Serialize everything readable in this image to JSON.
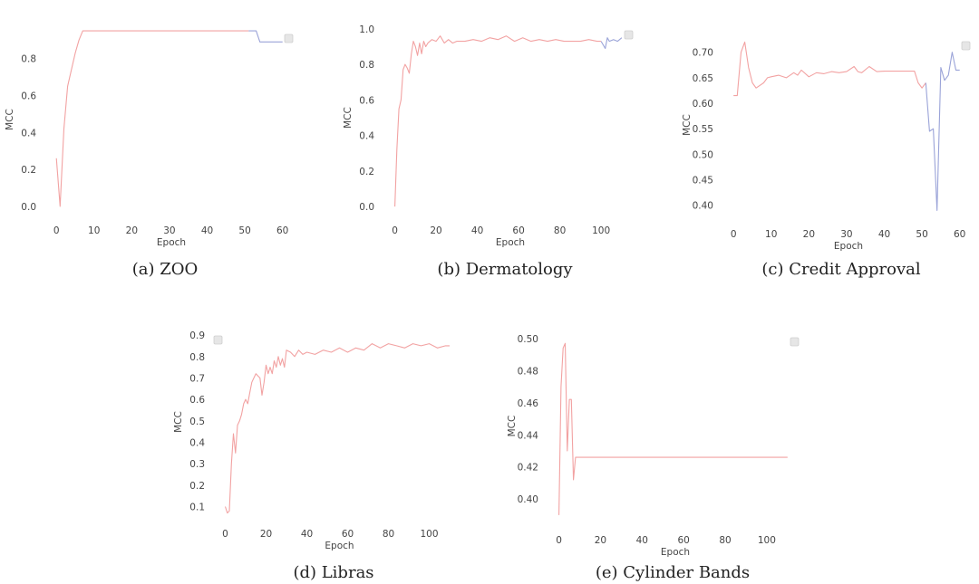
{
  "chart_data": [
    {
      "id": "zoo",
      "type": "line",
      "caption": "(a) ZOO",
      "xlabel": "Epoch",
      "ylabel": "MCC",
      "xlim": [
        -1,
        62
      ],
      "ylim": [
        -0.03,
        0.97
      ],
      "xticks": [
        0,
        10,
        20,
        30,
        40,
        50,
        60
      ],
      "yticks": [
        0.0,
        0.2,
        0.4,
        0.6,
        0.8
      ],
      "ytick_format": 1,
      "legend": "top-right",
      "series": [
        {
          "color": "#f2a2a2",
          "x": [
            0,
            1,
            2,
            3,
            4,
            5,
            6,
            7,
            10,
            20,
            30,
            40,
            50,
            51
          ],
          "y": [
            0.26,
            0.0,
            0.42,
            0.65,
            0.74,
            0.83,
            0.9,
            0.95,
            0.95,
            0.95,
            0.95,
            0.95,
            0.95,
            0.95
          ]
        },
        {
          "color": "#9aa3d8",
          "x": [
            51,
            53,
            54,
            55,
            58,
            60
          ],
          "y": [
            0.95,
            0.95,
            0.89,
            0.89,
            0.89,
            0.89
          ]
        }
      ]
    },
    {
      "id": "dermatology",
      "type": "line",
      "caption": "(b) Dermatology",
      "xlabel": "Epoch",
      "ylabel": "MCC",
      "xlim": [
        -2,
        114
      ],
      "ylim": [
        -0.03,
        1.03
      ],
      "xticks": [
        0,
        20,
        40,
        60,
        80,
        100
      ],
      "yticks": [
        0.0,
        0.2,
        0.4,
        0.6,
        0.8,
        1.0
      ],
      "ytick_format": 1,
      "legend": "top-right",
      "series": [
        {
          "color": "#f2a2a2",
          "x": [
            0,
            1,
            2,
            3,
            4,
            5,
            6,
            7,
            8,
            9,
            10,
            11,
            12,
            13,
            14,
            15,
            16,
            18,
            20,
            22,
            24,
            26,
            28,
            30,
            34,
            38,
            42,
            46,
            50,
            54,
            58,
            62,
            66,
            70,
            74,
            78,
            82,
            86,
            90,
            94,
            98,
            100
          ],
          "y": [
            0.0,
            0.32,
            0.55,
            0.6,
            0.77,
            0.8,
            0.78,
            0.75,
            0.86,
            0.93,
            0.9,
            0.85,
            0.92,
            0.86,
            0.93,
            0.9,
            0.92,
            0.94,
            0.93,
            0.96,
            0.92,
            0.94,
            0.92,
            0.93,
            0.93,
            0.94,
            0.93,
            0.95,
            0.94,
            0.96,
            0.93,
            0.95,
            0.93,
            0.94,
            0.93,
            0.94,
            0.93,
            0.93,
            0.93,
            0.94,
            0.93,
            0.93
          ]
        },
        {
          "color": "#9aa3d8",
          "x": [
            100,
            102,
            103,
            104,
            106,
            108,
            110
          ],
          "y": [
            0.93,
            0.89,
            0.95,
            0.93,
            0.94,
            0.93,
            0.95
          ]
        }
      ]
    },
    {
      "id": "credit-approval",
      "type": "line",
      "caption": "(c) Credit Approval",
      "xlabel": "Epoch",
      "ylabel": "MCC",
      "xlim": [
        -1,
        62
      ],
      "ylim": [
        0.38,
        0.735
      ],
      "xticks": [
        0,
        10,
        20,
        30,
        40,
        50,
        60
      ],
      "yticks": [
        0.4,
        0.45,
        0.5,
        0.55,
        0.6,
        0.65,
        0.7
      ],
      "ytick_format": 2,
      "legend": "top-right",
      "series": [
        {
          "color": "#f2a2a2",
          "x": [
            0,
            1,
            2,
            3,
            4,
            5,
            6,
            7,
            8,
            9,
            10,
            12,
            14,
            16,
            17,
            18,
            20,
            22,
            24,
            26,
            28,
            30,
            32,
            33,
            34,
            36,
            38,
            40,
            44,
            48,
            49,
            50,
            51
          ],
          "y": [
            0.615,
            0.615,
            0.7,
            0.72,
            0.67,
            0.64,
            0.63,
            0.635,
            0.64,
            0.65,
            0.652,
            0.655,
            0.65,
            0.66,
            0.655,
            0.665,
            0.652,
            0.66,
            0.658,
            0.662,
            0.66,
            0.662,
            0.672,
            0.662,
            0.66,
            0.672,
            0.662,
            0.663,
            0.663,
            0.663,
            0.64,
            0.63,
            0.64
          ]
        },
        {
          "color": "#9aa3d8",
          "x": [
            51,
            52,
            53,
            54,
            55,
            56,
            57,
            58,
            59,
            60
          ],
          "y": [
            0.64,
            0.545,
            0.55,
            0.39,
            0.67,
            0.645,
            0.655,
            0.7,
            0.665,
            0.665
          ]
        }
      ]
    },
    {
      "id": "libras",
      "type": "line",
      "caption": "(d) Libras",
      "xlabel": "Epoch",
      "ylabel": "MCC",
      "xlim": [
        -2,
        114
      ],
      "ylim": [
        0.06,
        0.93
      ],
      "xticks": [
        0,
        20,
        40,
        60,
        80,
        100
      ],
      "yticks": [
        0.1,
        0.2,
        0.3,
        0.4,
        0.5,
        0.6,
        0.7,
        0.8,
        0.9
      ],
      "ytick_format": 1,
      "legend": "top-left",
      "series": [
        {
          "color": "#f2a2a2",
          "x": [
            0,
            1,
            2,
            3,
            4,
            5,
            6,
            7,
            8,
            9,
            10,
            11,
            12,
            13,
            14,
            15,
            16,
            17,
            18,
            19,
            20,
            21,
            22,
            23,
            24,
            25,
            26,
            27,
            28,
            29,
            30,
            32,
            34,
            36,
            38,
            40,
            44,
            48,
            52,
            56,
            60,
            64,
            68,
            72,
            76,
            80,
            84,
            88,
            92,
            96,
            100,
            104,
            108,
            110
          ],
          "y": [
            0.1,
            0.07,
            0.08,
            0.3,
            0.44,
            0.35,
            0.48,
            0.5,
            0.53,
            0.58,
            0.6,
            0.58,
            0.63,
            0.68,
            0.7,
            0.72,
            0.71,
            0.7,
            0.62,
            0.68,
            0.76,
            0.72,
            0.75,
            0.72,
            0.78,
            0.75,
            0.8,
            0.76,
            0.79,
            0.75,
            0.83,
            0.82,
            0.8,
            0.83,
            0.81,
            0.82,
            0.81,
            0.83,
            0.82,
            0.84,
            0.82,
            0.84,
            0.83,
            0.86,
            0.84,
            0.86,
            0.85,
            0.84,
            0.86,
            0.85,
            0.86,
            0.84,
            0.85,
            0.85
          ]
        }
      ]
    },
    {
      "id": "cylinder-bands",
      "type": "line",
      "caption": "(e) Cylinder Bands",
      "xlabel": "Epoch",
      "ylabel": "MCC",
      "xlim": [
        -2,
        114
      ],
      "ylim": [
        0.386,
        0.505
      ],
      "xticks": [
        0,
        20,
        40,
        60,
        80,
        100
      ],
      "yticks": [
        0.4,
        0.42,
        0.44,
        0.46,
        0.48,
        0.5
      ],
      "ytick_format": 2,
      "legend": "top-right",
      "series": [
        {
          "color": "#f2a2a2",
          "x": [
            0,
            1,
            2,
            3,
            4,
            5,
            6,
            7,
            8,
            9,
            10,
            20,
            40,
            60,
            80,
            100,
            110
          ],
          "y": [
            0.39,
            0.47,
            0.494,
            0.497,
            0.43,
            0.462,
            0.462,
            0.412,
            0.426,
            0.426,
            0.426,
            0.426,
            0.426,
            0.426,
            0.426,
            0.426,
            0.426
          ]
        }
      ]
    }
  ]
}
